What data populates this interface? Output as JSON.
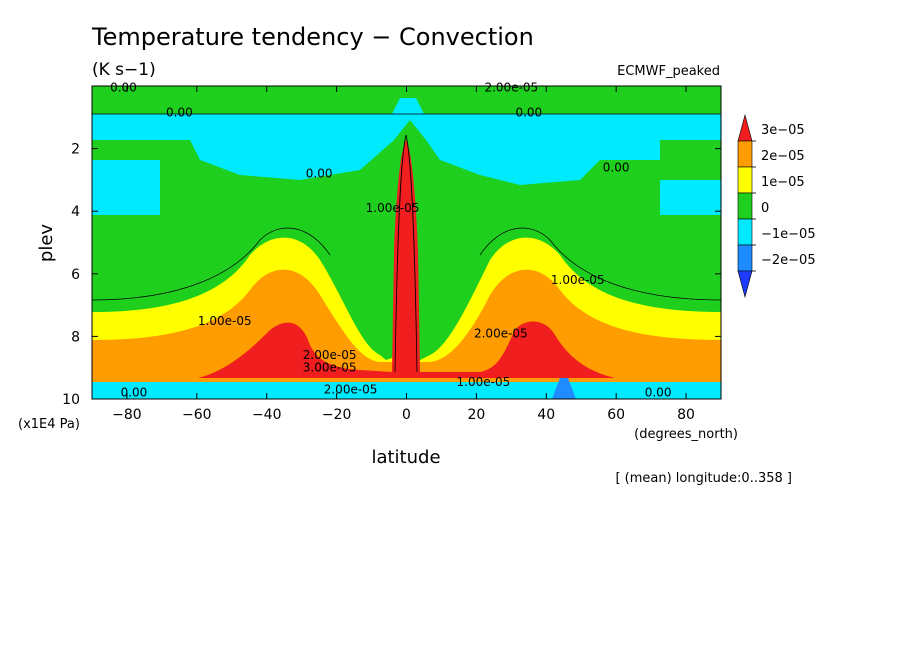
{
  "chart_data": {
    "type": "heatmap",
    "title": "Temperature tendency − Convection",
    "units": "(K s−1)",
    "dataset": "ECMWF_peaked",
    "xlabel": "latitude",
    "x_units": "(degrees_north)",
    "ylabel": "plev",
    "y_units": "(x1E4 Pa)",
    "footnote": "[ (mean) longitude:0..358 ]",
    "xlim": [
      -90,
      90
    ],
    "ylim": [
      10,
      0
    ],
    "x_ticks": [
      "−80",
      "−60",
      "−40",
      "−20",
      "0",
      "20",
      "40",
      "60",
      "80"
    ],
    "x_tick_values": [
      -80,
      -60,
      -40,
      -20,
      0,
      20,
      40,
      60,
      80
    ],
    "y_ticks": [
      "2",
      "4",
      "6",
      "8",
      "10"
    ],
    "y_tick_values": [
      2,
      4,
      6,
      8,
      10
    ],
    "colorbar": {
      "labels": [
        "3e−05",
        "2e−05",
        "1e−05",
        "0",
        "−1e−05",
        "−2e−05"
      ],
      "bins": [
        {
          "range": "> 3e-05",
          "color": "#f01e1e"
        },
        {
          "range": "2e-05 – 3e-05",
          "color": "#ff9c00"
        },
        {
          "range": "1e-05 – 2e-05",
          "color": "#ffff00"
        },
        {
          "range": "0 – 1e-05",
          "color": "#1ecf1e"
        },
        {
          "range": "-1e-05 – 0",
          "color": "#00eaff"
        },
        {
          "range": "-2e-05 – -1e-05",
          "color": "#1e8cff"
        },
        {
          "range": "< -2e-05",
          "color": "#1e3cff"
        }
      ]
    },
    "contour_labels": [
      {
        "text": "0.00",
        "lat": -81,
        "plev": 0.05
      },
      {
        "text": "2.00e-05",
        "lat": 30,
        "plev": 0.05
      },
      {
        "text": "0.00",
        "lat": -65,
        "plev": 0.85
      },
      {
        "text": "0.00",
        "lat": 35,
        "plev": 0.85
      },
      {
        "text": "0.00",
        "lat": 60,
        "plev": 2.6
      },
      {
        "text": "0.00",
        "lat": -25,
        "plev": 2.8
      },
      {
        "text": "1.00e-05",
        "lat": -4,
        "plev": 3.9
      },
      {
        "text": "1.00e-05",
        "lat": 49,
        "plev": 6.2
      },
      {
        "text": "1.00e-05",
        "lat": -52,
        "plev": 7.5
      },
      {
        "text": "2.00e-05",
        "lat": 27,
        "plev": 7.9
      },
      {
        "text": "2.00e-05",
        "lat": -22,
        "plev": 8.6
      },
      {
        "text": "3.00e-05",
        "lat": -22,
        "plev": 9.0
      },
      {
        "text": "1.00e-05",
        "lat": 22,
        "plev": 9.45
      },
      {
        "text": "2.00e-05",
        "lat": -16,
        "plev": 9.7
      },
      {
        "text": "0.00",
        "lat": -78,
        "plev": 9.8
      },
      {
        "text": "0.00",
        "lat": 72,
        "plev": 9.8
      }
    ],
    "grid": false
  }
}
